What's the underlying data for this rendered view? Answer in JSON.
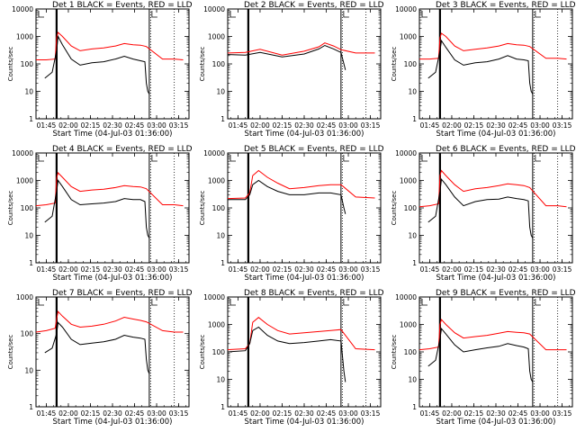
{
  "chart_data": [
    {
      "type": "line",
      "title": "Det  1  BLACK = Events, RED = LLD",
      "panel_label": "Det  1",
      "legend_text": "BLACK = Events, RED = LLD",
      "xlabel": "Start Time (04-Jul-03 01:36:00)",
      "ylabel": "Counts/sec",
      "yscale": "log",
      "ylim": [
        1,
        10000
      ],
      "xlim": [
        "01:38",
        "03:22"
      ],
      "x_ticks": [
        "01:45",
        "02:00",
        "02:15",
        "02:30",
        "02:45",
        "03:00",
        "03:15"
      ],
      "y_ticks": [
        "1",
        "10",
        "100",
        "1000",
        "10000"
      ],
      "series": [
        {
          "name": "Events",
          "color": "#000000",
          "x": [
            "01:44",
            "01:49",
            "01:52",
            "01:53",
            "01:56",
            "02:02",
            "02:08",
            "02:16",
            "02:24",
            "02:32",
            "02:38",
            "02:44",
            "02:49",
            "02:52",
            "02:53",
            "02:54",
            "02:55"
          ],
          "values": [
            30,
            50,
            300,
            1000,
            500,
            150,
            90,
            110,
            120,
            150,
            190,
            150,
            130,
            120,
            20,
            10,
            8
          ]
        },
        {
          "name": "LLD",
          "color": "#ff0000",
          "x": [
            "01:38",
            "01:45",
            "01:51",
            "01:52",
            "01:53",
            "01:56",
            "02:02",
            "02:08",
            "02:16",
            "02:24",
            "02:32",
            "02:38",
            "02:44",
            "02:49",
            "02:53",
            "03:04",
            "03:12",
            "03:18"
          ],
          "values": [
            140,
            140,
            150,
            900,
            1400,
            1000,
            450,
            300,
            350,
            380,
            450,
            550,
            500,
            480,
            430,
            150,
            150,
            140
          ]
        }
      ]
    },
    {
      "type": "line",
      "title": "Det  2  BLACK = Events, RED = LLD",
      "panel_label": "Det  2",
      "legend_text": "BLACK = Events, RED = LLD",
      "xlabel": "Start Time (04-Jul-03 01:36:00)",
      "ylabel": "Counts/sec",
      "yscale": "log",
      "ylim": [
        1,
        10000
      ],
      "xlim": [
        "01:38",
        "03:22"
      ],
      "x_ticks": [
        "01:45",
        "02:00",
        "02:15",
        "02:30",
        "02:45",
        "03:00",
        "03:15"
      ],
      "y_ticks": [
        "1",
        "10",
        "100",
        "1000",
        "10000"
      ],
      "series": [
        {
          "name": "Events",
          "color": "#000000",
          "x": [
            "01:38",
            "01:50",
            "02:00",
            "02:15",
            "02:30",
            "02:40",
            "02:44",
            "02:50",
            "02:55",
            "02:57",
            "02:58"
          ],
          "values": [
            220,
            210,
            260,
            180,
            230,
            350,
            470,
            350,
            260,
            100,
            60
          ]
        },
        {
          "name": "LLD",
          "color": "#ff0000",
          "x": [
            "01:38",
            "01:50",
            "02:00",
            "02:15",
            "02:30",
            "02:40",
            "02:44",
            "02:50",
            "02:55",
            "03:05",
            "03:18"
          ],
          "values": [
            250,
            260,
            340,
            210,
            290,
            420,
            580,
            450,
            330,
            250,
            250
          ]
        }
      ]
    },
    {
      "type": "line",
      "title": "Det  3  BLACK = Events, RED = LLD",
      "panel_label": "Det  3",
      "legend_text": "BLACK = Events, RED = LLD",
      "xlabel": "Start Time (04-Jul-03 01:36:00)",
      "ylabel": "Counts/sec",
      "yscale": "log",
      "ylim": [
        1,
        10000
      ],
      "xlim": [
        "01:38",
        "03:22"
      ],
      "x_ticks": [
        "01:45",
        "02:00",
        "02:15",
        "02:30",
        "02:45",
        "03:00",
        "03:15"
      ],
      "y_ticks": [
        "1",
        "10",
        "100",
        "1000",
        "10000"
      ],
      "series": [
        {
          "name": "Events",
          "color": "#000000",
          "x": [
            "01:44",
            "01:49",
            "01:52",
            "01:53",
            "01:56",
            "02:02",
            "02:08",
            "02:16",
            "02:24",
            "02:32",
            "02:38",
            "02:44",
            "02:49",
            "02:52",
            "02:53",
            "02:54",
            "02:55"
          ],
          "values": [
            30,
            50,
            300,
            700,
            400,
            140,
            90,
            110,
            120,
            150,
            200,
            150,
            140,
            130,
            20,
            10,
            8
          ]
        },
        {
          "name": "LLD",
          "color": "#ff0000",
          "x": [
            "01:38",
            "01:45",
            "01:51",
            "01:52",
            "01:53",
            "01:56",
            "02:02",
            "02:08",
            "02:16",
            "02:24",
            "02:32",
            "02:38",
            "02:44",
            "02:49",
            "02:53",
            "03:04",
            "03:12",
            "03:18"
          ],
          "values": [
            150,
            150,
            160,
            900,
            1300,
            1000,
            450,
            300,
            340,
            380,
            450,
            550,
            500,
            480,
            430,
            160,
            160,
            150
          ]
        }
      ]
    },
    {
      "type": "line",
      "title": "Det  4  BLACK = Events, RED = LLD",
      "panel_label": "Det  4",
      "legend_text": "BLACK = Events, RED = LLD",
      "xlabel": "Start Time (04-Jul-03 01:36:00)",
      "ylabel": "Counts/sec",
      "yscale": "log",
      "ylim": [
        1,
        10000
      ],
      "xlim": [
        "01:38",
        "03:22"
      ],
      "x_ticks": [
        "01:45",
        "02:00",
        "02:15",
        "02:30",
        "02:45",
        "03:00",
        "03:15"
      ],
      "y_ticks": [
        "1",
        "10",
        "100",
        "1000",
        "10000"
      ],
      "series": [
        {
          "name": "Events",
          "color": "#000000",
          "x": [
            "01:44",
            "01:49",
            "01:52",
            "01:53",
            "01:56",
            "02:02",
            "02:08",
            "02:16",
            "02:24",
            "02:32",
            "02:38",
            "02:44",
            "02:49",
            "02:52",
            "02:53",
            "02:54",
            "02:55"
          ],
          "values": [
            30,
            50,
            400,
            1000,
            600,
            200,
            130,
            140,
            150,
            170,
            220,
            200,
            200,
            170,
            20,
            10,
            8
          ]
        },
        {
          "name": "LLD",
          "color": "#ff0000",
          "x": [
            "01:38",
            "01:45",
            "01:51",
            "01:52",
            "01:53",
            "01:56",
            "02:02",
            "02:08",
            "02:16",
            "02:24",
            "02:32",
            "02:38",
            "02:44",
            "02:49",
            "02:53",
            "03:04",
            "03:12",
            "03:18"
          ],
          "values": [
            120,
            130,
            150,
            1200,
            1900,
            1300,
            600,
            400,
            450,
            480,
            550,
            650,
            600,
            580,
            500,
            130,
            130,
            120
          ]
        }
      ]
    },
    {
      "type": "line",
      "title": "Det  5  BLACK = Events, RED = LLD",
      "panel_label": "Det  5",
      "legend_text": "BLACK = Events, RED = LLD",
      "xlabel": "Start Time (04-Jul-03 01:36:00)",
      "ylabel": "Counts/sec",
      "yscale": "log",
      "ylim": [
        1,
        10000
      ],
      "xlim": [
        "01:38",
        "03:22"
      ],
      "x_ticks": [
        "01:45",
        "02:00",
        "02:15",
        "02:30",
        "02:45",
        "03:00",
        "03:15"
      ],
      "y_ticks": [
        "1",
        "10",
        "100",
        "1000",
        "10000"
      ],
      "series": [
        {
          "name": "Events",
          "color": "#000000",
          "x": [
            "01:38",
            "01:50",
            "01:53",
            "01:55",
            "01:59",
            "02:05",
            "02:12",
            "02:20",
            "02:30",
            "02:40",
            "02:48",
            "02:55",
            "02:57",
            "02:58"
          ],
          "values": [
            200,
            200,
            300,
            700,
            1000,
            600,
            400,
            300,
            300,
            350,
            350,
            300,
            100,
            60
          ]
        },
        {
          "name": "LLD",
          "color": "#ff0000",
          "x": [
            "01:38",
            "01:50",
            "01:53",
            "01:55",
            "01:59",
            "02:05",
            "02:12",
            "02:20",
            "02:30",
            "02:40",
            "02:48",
            "02:55",
            "03:05",
            "03:18"
          ],
          "values": [
            220,
            230,
            350,
            1500,
            2300,
            1300,
            800,
            500,
            550,
            650,
            700,
            700,
            250,
            230
          ]
        }
      ]
    },
    {
      "type": "line",
      "title": "Det  6  BLACK = Events, RED = LLD",
      "panel_label": "Det  6",
      "legend_text": "BLACK = Events, RED = LLD",
      "xlabel": "Start Time (04-Jul-03 01:36:00)",
      "ylabel": "Counts/sec",
      "yscale": "log",
      "ylim": [
        1,
        10000
      ],
      "xlim": [
        "01:38",
        "03:22"
      ],
      "x_ticks": [
        "01:45",
        "02:00",
        "02:15",
        "02:30",
        "02:45",
        "03:00",
        "03:15"
      ],
      "y_ticks": [
        "1",
        "10",
        "100",
        "1000",
        "10000"
      ],
      "series": [
        {
          "name": "Events",
          "color": "#000000",
          "x": [
            "01:44",
            "01:49",
            "01:52",
            "01:53",
            "01:56",
            "02:02",
            "02:08",
            "02:16",
            "02:24",
            "02:32",
            "02:38",
            "02:44",
            "02:49",
            "02:52",
            "02:53",
            "02:54",
            "02:55"
          ],
          "values": [
            30,
            50,
            400,
            1100,
            700,
            250,
            120,
            170,
            200,
            210,
            250,
            220,
            200,
            180,
            20,
            10,
            8
          ]
        },
        {
          "name": "LLD",
          "color": "#ff0000",
          "x": [
            "01:38",
            "01:45",
            "01:51",
            "01:52",
            "01:53",
            "01:56",
            "02:02",
            "02:08",
            "02:16",
            "02:24",
            "02:32",
            "02:38",
            "02:44",
            "02:49",
            "02:53",
            "03:04",
            "03:12",
            "03:18"
          ],
          "values": [
            110,
            120,
            140,
            1500,
            2300,
            1500,
            700,
            400,
            500,
            550,
            650,
            750,
            700,
            650,
            550,
            120,
            120,
            110
          ]
        }
      ]
    },
    {
      "type": "line",
      "title": "Det  7  BLACK = Events, RED = LLD",
      "panel_label": "Det  7",
      "legend_text": "BLACK = Events, RED = LLD",
      "xlabel": "Start Time (04-Jul-03 01:36:00)",
      "ylabel": "Counts/sec",
      "yscale": "log",
      "ylim": [
        1,
        1000
      ],
      "xlim": [
        "01:38",
        "03:22"
      ],
      "x_ticks": [
        "01:45",
        "02:00",
        "02:15",
        "02:30",
        "02:45",
        "03:00",
        "03:15"
      ],
      "y_ticks": [
        "1",
        "10",
        "100",
        "1000"
      ],
      "series": [
        {
          "name": "Events",
          "color": "#000000",
          "x": [
            "01:44",
            "01:49",
            "01:52",
            "01:53",
            "01:56",
            "02:02",
            "02:08",
            "02:16",
            "02:24",
            "02:32",
            "02:38",
            "02:44",
            "02:49",
            "02:52",
            "02:53",
            "02:54",
            "02:55"
          ],
          "values": [
            30,
            40,
            100,
            200,
            150,
            70,
            50,
            55,
            60,
            70,
            90,
            80,
            75,
            70,
            20,
            10,
            8
          ]
        },
        {
          "name": "LLD",
          "color": "#ff0000",
          "x": [
            "01:38",
            "01:45",
            "01:51",
            "01:52",
            "01:53",
            "01:56",
            "02:02",
            "02:08",
            "02:16",
            "02:24",
            "02:32",
            "02:38",
            "02:44",
            "02:49",
            "02:53",
            "03:04",
            "03:12",
            "03:18"
          ],
          "values": [
            110,
            120,
            140,
            250,
            400,
            300,
            180,
            150,
            160,
            180,
            220,
            280,
            250,
            230,
            210,
            120,
            110,
            110
          ]
        }
      ]
    },
    {
      "type": "line",
      "title": "Det  8  BLACK = Events, RED = LLD",
      "panel_label": "Det  8",
      "legend_text": "BLACK = Events, RED = LLD",
      "xlabel": "Start Time (04-Jul-03 01:36:00)",
      "ylabel": "Counts/sec",
      "yscale": "log",
      "ylim": [
        1,
        10000
      ],
      "xlim": [
        "01:38",
        "03:22"
      ],
      "x_ticks": [
        "01:45",
        "02:00",
        "02:15",
        "02:30",
        "02:45",
        "03:00",
        "03:15"
      ],
      "y_ticks": [
        "1",
        "10",
        "100",
        "1000",
        "10000"
      ],
      "series": [
        {
          "name": "Events",
          "color": "#000000",
          "x": [
            "01:38",
            "01:50",
            "01:53",
            "01:55",
            "01:59",
            "02:05",
            "02:12",
            "02:20",
            "02:30",
            "02:40",
            "02:48",
            "02:55",
            "02:57",
            "02:58"
          ],
          "values": [
            100,
            110,
            200,
            600,
            800,
            400,
            250,
            200,
            220,
            250,
            280,
            250,
            20,
            8
          ]
        },
        {
          "name": "LLD",
          "color": "#ff0000",
          "x": [
            "01:38",
            "01:50",
            "01:53",
            "01:55",
            "01:59",
            "02:05",
            "02:12",
            "02:20",
            "02:30",
            "02:40",
            "02:48",
            "02:55",
            "03:05",
            "03:18"
          ],
          "values": [
            120,
            130,
            200,
            1200,
            1800,
            1000,
            600,
            450,
            500,
            550,
            600,
            650,
            130,
            120
          ]
        }
      ]
    },
    {
      "type": "line",
      "title": "Det  9  BLACK = Events, RED = LLD",
      "panel_label": "Det  9",
      "legend_text": "BLACK = Events, RED = LLD",
      "xlabel": "Start Time (04-Jul-03 01:36:00)",
      "ylabel": "Counts/sec",
      "yscale": "log",
      "ylim": [
        1,
        10000
      ],
      "xlim": [
        "01:38",
        "03:22"
      ],
      "x_ticks": [
        "01:45",
        "02:00",
        "02:15",
        "02:30",
        "02:45",
        "03:00",
        "03:15"
      ],
      "y_ticks": [
        "1",
        "10",
        "100",
        "1000",
        "10000"
      ],
      "series": [
        {
          "name": "Events",
          "color": "#000000",
          "x": [
            "01:44",
            "01:49",
            "01:52",
            "01:53",
            "01:56",
            "02:02",
            "02:08",
            "02:16",
            "02:24",
            "02:32",
            "02:38",
            "02:44",
            "02:49",
            "02:52",
            "02:53",
            "02:54",
            "02:55"
          ],
          "values": [
            30,
            50,
            300,
            700,
            450,
            180,
            100,
            120,
            140,
            160,
            200,
            170,
            150,
            130,
            20,
            10,
            8
          ]
        },
        {
          "name": "LLD",
          "color": "#ff0000",
          "x": [
            "01:38",
            "01:45",
            "01:51",
            "01:52",
            "01:53",
            "01:56",
            "02:02",
            "02:08",
            "02:16",
            "02:24",
            "02:32",
            "02:38",
            "02:44",
            "02:49",
            "02:53",
            "03:04",
            "03:12",
            "03:18"
          ],
          "values": [
            120,
            130,
            150,
            1000,
            1500,
            1000,
            500,
            320,
            360,
            400,
            480,
            550,
            520,
            500,
            450,
            120,
            120,
            120
          ]
        }
      ]
    }
  ]
}
